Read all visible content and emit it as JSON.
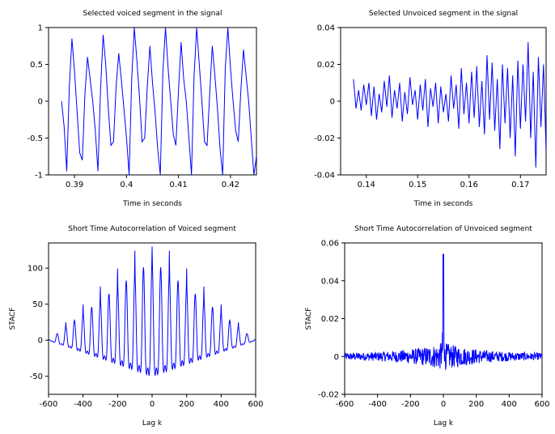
{
  "line_color": "#0000FF",
  "chart_data": [
    {
      "type": "line",
      "title": "Selected voiced segment in the signal",
      "xlabel": "Time in seconds",
      "ylabel": "",
      "xlim": [
        0.385,
        0.425
      ],
      "ylim": [
        -1,
        1
      ],
      "xticks": [
        0.39,
        0.4,
        0.41,
        0.42
      ],
      "xtick_labels": [
        "0.39",
        "0.4",
        "0.41",
        "0.42"
      ],
      "yticks": [
        -1,
        -0.5,
        0,
        0.5,
        1
      ],
      "ytick_labels": [
        "-1",
        "-0.5",
        "0",
        "0.5",
        "1"
      ],
      "grid": false,
      "series": [
        {
          "x": [
            0.3875,
            0.388,
            0.3885,
            0.389,
            0.3895,
            0.39,
            0.3905,
            0.391,
            0.3915,
            0.392,
            0.3925,
            0.393,
            0.3935,
            0.394,
            0.3945,
            0.395,
            0.3955,
            0.396,
            0.3965,
            0.397,
            0.3975,
            0.398,
            0.3985,
            0.399,
            0.3995,
            0.4,
            0.4005,
            0.401,
            0.4015,
            0.402,
            0.4025,
            0.403,
            0.4035,
            0.404,
            0.4045,
            0.405,
            0.4055,
            0.406,
            0.4065,
            0.407,
            0.4075,
            0.408,
            0.4085,
            0.409,
            0.4095,
            0.41,
            0.4105,
            0.411,
            0.4115,
            0.412,
            0.4125,
            0.413,
            0.4135,
            0.414,
            0.4145,
            0.415,
            0.4155,
            0.416,
            0.4165,
            0.417,
            0.4175,
            0.418,
            0.4185,
            0.419,
            0.4195,
            0.42,
            0.4205,
            0.421,
            0.4215,
            0.422,
            0.4225,
            0.423,
            0.4235,
            0.424,
            0.4245,
            0.425
          ],
          "y": [
            0.0,
            -0.35,
            -0.95,
            0.2,
            0.85,
            0.4,
            -0.15,
            -0.7,
            -0.8,
            0.1,
            0.6,
            0.3,
            0.0,
            -0.4,
            -0.95,
            0.15,
            0.9,
            0.5,
            -0.1,
            -0.6,
            -0.55,
            0.2,
            0.65,
            0.3,
            -0.1,
            -0.5,
            -1.0,
            0.3,
            1.0,
            0.55,
            0.05,
            -0.55,
            -0.5,
            0.2,
            0.75,
            0.25,
            -0.15,
            -0.65,
            -1.0,
            0.4,
            1.0,
            0.45,
            0.0,
            -0.45,
            -0.6,
            0.15,
            0.8,
            0.3,
            0.0,
            -0.5,
            -1.0,
            0.35,
            1.0,
            0.5,
            0.0,
            -0.55,
            -0.6,
            0.1,
            0.75,
            0.35,
            -0.1,
            -0.65,
            -1.0,
            0.45,
            1.0,
            0.45,
            0.0,
            -0.4,
            -0.55,
            0.15,
            0.7,
            0.35,
            0.0,
            -0.5,
            -1.0,
            -0.75
          ]
        }
      ]
    },
    {
      "type": "line",
      "title": "Selected Unvoiced segment in the signal",
      "xlabel": "Time in seconds",
      "ylabel": "",
      "xlim": [
        0.135,
        0.175
      ],
      "ylim": [
        -0.04,
        0.04
      ],
      "xticks": [
        0.14,
        0.15,
        0.16,
        0.17
      ],
      "xtick_labels": [
        "0.14",
        "0.15",
        "0.16",
        "0.17"
      ],
      "yticks": [
        -0.04,
        -0.02,
        0,
        0.02,
        0.04
      ],
      "ytick_labels": [
        "-0.04",
        "-0.02",
        "0",
        "0.02",
        "0.04"
      ],
      "grid": false,
      "series": [
        {
          "x": [
            0.1375,
            0.138,
            0.1385,
            0.139,
            0.1395,
            0.14,
            0.1405,
            0.141,
            0.1415,
            0.142,
            0.1425,
            0.143,
            0.1435,
            0.144,
            0.1445,
            0.145,
            0.1455,
            0.146,
            0.1465,
            0.147,
            0.1475,
            0.148,
            0.1485,
            0.149,
            0.1495,
            0.15,
            0.1505,
            0.151,
            0.1515,
            0.152,
            0.1525,
            0.153,
            0.1535,
            0.154,
            0.1545,
            0.155,
            0.1555,
            0.156,
            0.1565,
            0.157,
            0.1575,
            0.158,
            0.1585,
            0.159,
            0.1595,
            0.16,
            0.1605,
            0.161,
            0.1615,
            0.162,
            0.1625,
            0.163,
            0.1635,
            0.164,
            0.1645,
            0.165,
            0.1655,
            0.166,
            0.1665,
            0.167,
            0.1675,
            0.168,
            0.1685,
            0.169,
            0.1695,
            0.17,
            0.1705,
            0.171,
            0.1715,
            0.172,
            0.1725,
            0.173,
            0.1735,
            0.174,
            0.1745,
            0.175
          ],
          "y": [
            0.012,
            -0.004,
            0.006,
            -0.005,
            0.009,
            -0.002,
            0.01,
            -0.008,
            0.008,
            -0.01,
            0.004,
            -0.006,
            0.011,
            -0.003,
            0.014,
            -0.009,
            0.006,
            -0.004,
            0.01,
            -0.011,
            0.005,
            -0.007,
            0.013,
            -0.002,
            0.006,
            -0.01,
            0.009,
            -0.005,
            0.012,
            -0.014,
            0.007,
            -0.003,
            0.01,
            -0.012,
            0.008,
            -0.006,
            0.004,
            -0.011,
            0.014,
            -0.004,
            0.009,
            -0.015,
            0.018,
            -0.007,
            0.01,
            -0.012,
            0.016,
            -0.009,
            0.019,
            -0.014,
            0.011,
            -0.018,
            0.025,
            -0.01,
            0.021,
            -0.016,
            0.012,
            -0.026,
            0.02,
            -0.012,
            0.018,
            -0.02,
            0.014,
            -0.03,
            0.022,
            -0.015,
            0.02,
            -0.011,
            0.032,
            -0.02,
            0.016,
            -0.036,
            0.024,
            -0.014,
            0.02,
            -0.027
          ]
        }
      ]
    },
    {
      "type": "line",
      "title": "Short Time Autocorrelation of Voiced segment",
      "xlabel": "Lag k",
      "ylabel": "STACF",
      "xlim": [
        -600,
        600
      ],
      "ylim": [
        -75,
        135
      ],
      "xticks": [
        -600,
        -400,
        -200,
        0,
        200,
        400,
        600
      ],
      "xtick_labels": [
        "-600",
        "-400",
        "-200",
        "0",
        "200",
        "400",
        "600"
      ],
      "yticks": [
        -50,
        0,
        50,
        100
      ],
      "ytick_labels": [
        "-50",
        "0",
        "50",
        "100"
      ],
      "grid": false,
      "acf": {
        "peak": 130,
        "period": 50,
        "sub_peak_ratio": 0.45,
        "decay_width": 600,
        "neg_ratio": 0.5
      }
    },
    {
      "type": "line",
      "title": "Short Time Autocorrelation of Unvoiced segment",
      "xlabel": "Lag k",
      "ylabel": "STACF",
      "xlim": [
        -600,
        600
      ],
      "ylim": [
        -0.02,
        0.06
      ],
      "xticks": [
        -600,
        -400,
        -200,
        0,
        200,
        400,
        600
      ],
      "xtick_labels": [
        "-600",
        "-400",
        "-200",
        "0",
        "200",
        "400",
        "600"
      ],
      "yticks": [
        -0.02,
        0,
        0.02,
        0.04,
        0.06
      ],
      "ytick_labels": [
        "-0.02",
        "0",
        "0.02",
        "0.04",
        "0.06"
      ],
      "grid": false,
      "acf": {
        "peak": 0.054,
        "noise": 0.006,
        "spread": 220
      }
    }
  ]
}
